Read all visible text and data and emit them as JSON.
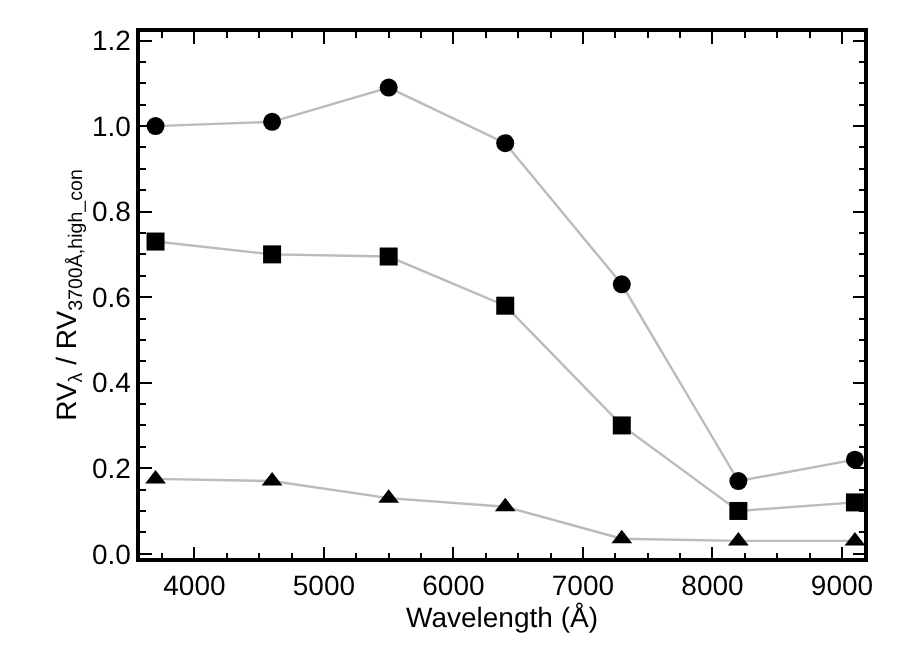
{
  "chart_data": {
    "type": "line",
    "xlabel": "Wavelength (Å)",
    "ylabel": "RV$_{λ}$ / RV$_{3700Å,high_con}$",
    "x": [
      3700,
      4600,
      5500,
      6400,
      7300,
      8200,
      9100
    ],
    "series": [
      {
        "color": "#000000",
        "marker": "circle",
        "values": [
          1.0,
          1.01,
          1.09,
          0.96,
          0.63,
          0.17,
          0.22
        ]
      },
      {
        "color": "#000000",
        "marker": "square",
        "values": [
          0.73,
          0.7,
          0.695,
          0.58,
          0.3,
          0.1,
          0.12
        ]
      },
      {
        "color": "#000000",
        "marker": "triangle",
        "values": [
          0.175,
          0.17,
          0.13,
          0.11,
          0.035,
          0.03,
          0.03
        ]
      }
    ],
    "xlim": [
      3580,
      9170
    ],
    "xticks": [
      4000,
      5000,
      6000,
      7000,
      8000,
      9000
    ],
    "ylim": [
      -0.01,
      1.22
    ],
    "yticks": [
      {
        "value": 0,
        "label": "0.0"
      },
      0.2,
      0.4,
      0.6,
      0.8,
      {
        "value": 1,
        "label": "1.0"
      },
      1.2
    ]
  }
}
